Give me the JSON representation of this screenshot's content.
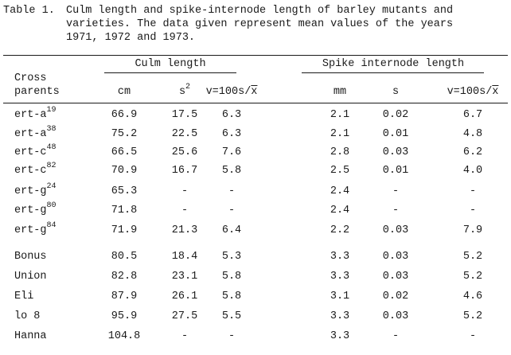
{
  "caption": {
    "label": "Table 1.",
    "lines": [
      "Culm length and spike-internode length of barley mutants and",
      "varieties.  The data given represent mean values of the years",
      "1971, 1972 and 1973."
    ]
  },
  "table": {
    "group_headers": {
      "culm": "Culm length",
      "spike": "Spike internode length"
    },
    "row_header": [
      "Cross",
      "parents"
    ],
    "columns": {
      "cm": "cm",
      "s2_base": "s",
      "s2_exp": "2",
      "v1_prefix": "v=100s/",
      "v1_x": "x",
      "mm": "mm",
      "s": "s",
      "v2_prefix": "v=100s/",
      "v2_x": "x"
    },
    "rows": [
      {
        "name": "ert-a",
        "sup": "19",
        "cm": "66.9",
        "s2": "17.5",
        "v": "6.3",
        "mm": "2.1",
        "s": "0.02",
        "v2": "6.7"
      },
      {
        "name": "ert-a",
        "sup": "38",
        "cm": "75.2",
        "s2": "22.5",
        "v": "6.3",
        "mm": "2.1",
        "s": "0.01",
        "v2": "4.8"
      },
      {
        "name": "ert-c",
        "sup": "48",
        "cm": "66.5",
        "s2": "25.6",
        "v": "7.6",
        "mm": "2.8",
        "s": "0.03",
        "v2": "6.2"
      },
      {
        "name": "ert-c",
        "sup": "82",
        "cm": "70.9",
        "s2": "16.7",
        "v": "5.8",
        "mm": "2.5",
        "s": "0.01",
        "v2": "4.0"
      },
      {
        "name": "ert-g",
        "sup": "24",
        "cm": "65.3",
        "s2": "-",
        "v": "-",
        "mm": "2.4",
        "s": "-",
        "v2": "-"
      },
      {
        "name": "ert-g",
        "sup": "80",
        "cm": "71.8",
        "s2": "-",
        "v": "-",
        "mm": "2.4",
        "s": "-",
        "v2": "-"
      },
      {
        "name": "ert-g",
        "sup": "84",
        "cm": "71.9",
        "s2": "21.3",
        "v": "6.4",
        "mm": "2.2",
        "s": "0.03",
        "v2": "7.9"
      },
      {
        "name": "Bonus",
        "sup": "",
        "cm": "80.5",
        "s2": "18.4",
        "v": "5.3",
        "mm": "3.3",
        "s": "0.03",
        "v2": "5.2"
      },
      {
        "name": "Union",
        "sup": "",
        "cm": "82.8",
        "s2": "23.1",
        "v": "5.8",
        "mm": "3.3",
        "s": "0.03",
        "v2": "5.2"
      },
      {
        "name": "Eli",
        "sup": "",
        "cm": "87.9",
        "s2": "26.1",
        "v": "5.8",
        "mm": "3.1",
        "s": "0.02",
        "v2": "4.6"
      },
      {
        "name": "lo 8",
        "sup": "",
        "cm": "95.9",
        "s2": "27.5",
        "v": "5.5",
        "mm": "3.3",
        "s": "0.03",
        "v2": "5.2"
      },
      {
        "name": "Hanna",
        "sup": "",
        "cm": "104.8",
        "s2": "-",
        "v": "-",
        "mm": "3.3",
        "s": "-",
        "v2": "-"
      }
    ]
  }
}
